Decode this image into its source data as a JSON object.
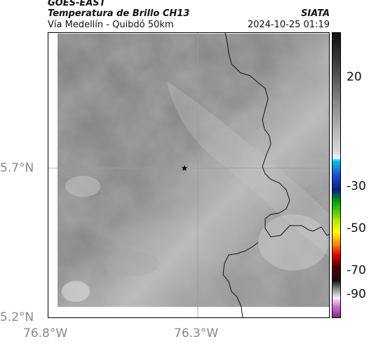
{
  "header": {
    "satellite": "GOES-EAST",
    "product": "Temperatura de Brillo CH13",
    "region": "Vía Medellín - Quibdó 50km",
    "org": "SIATA",
    "datetime": "2024-10-25 01:19"
  },
  "axes": {
    "lat_labels": [
      "5.7°N",
      "5.2°N"
    ],
    "lon_labels": [
      "76.8°W",
      "76.3°W"
    ]
  },
  "colorbar": {
    "ticks": [
      "20",
      "-30",
      "-50",
      "-70",
      "-90"
    ]
  },
  "marker": {
    "icon": "star-icon"
  }
}
